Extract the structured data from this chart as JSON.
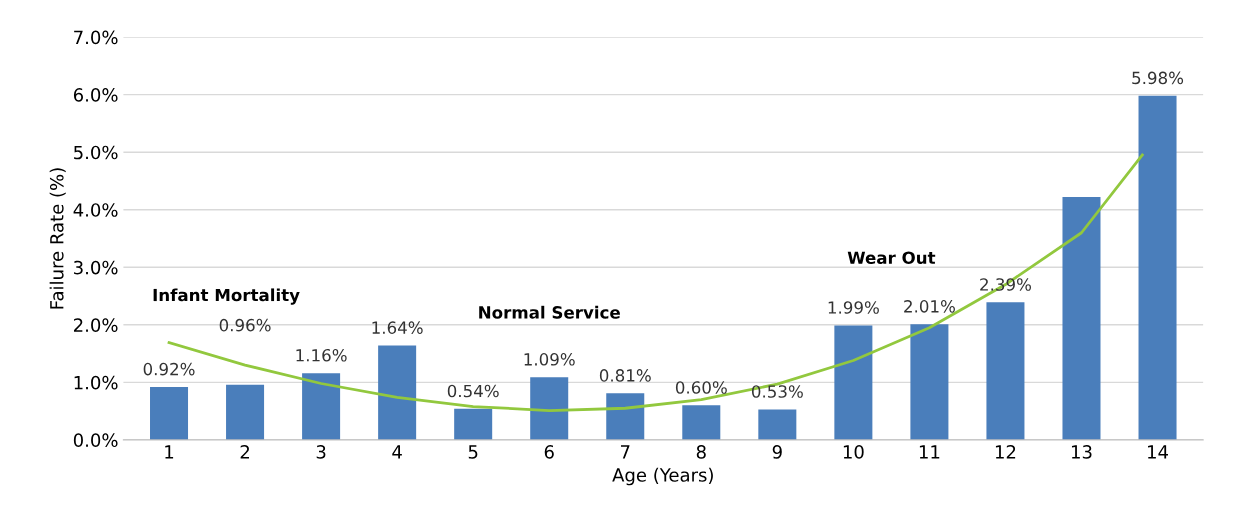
{
  "chart_data": {
    "type": "bar",
    "xlabel": "Age (Years)",
    "ylabel": "Failure Rate (%)",
    "x": [
      1,
      2,
      3,
      4,
      5,
      6,
      7,
      8,
      9,
      10,
      11,
      12,
      13,
      14
    ],
    "xlim": [
      0.4,
      14.6
    ],
    "xticks": [
      1,
      2,
      3,
      4,
      5,
      6,
      7,
      8,
      9,
      10,
      11,
      12,
      13,
      14
    ],
    "ylim": [
      0,
      7
    ],
    "yticks": [
      {
        "value": 0,
        "label": "0.0%"
      },
      {
        "value": 1,
        "label": "1.0%"
      },
      {
        "value": 2,
        "label": "2.0%"
      },
      {
        "value": 3,
        "label": "3.0%"
      },
      {
        "value": 4,
        "label": "4.0%"
      },
      {
        "value": 5,
        "label": "5.0%"
      },
      {
        "value": 6,
        "label": "6.0%"
      },
      {
        "value": 7,
        "label": "7.0%"
      }
    ],
    "grid": "y",
    "legend": false,
    "series": [
      {
        "color": "#4a7ebb",
        "values": [
          0.92,
          0.96,
          1.16,
          1.64,
          0.54,
          1.09,
          0.81,
          0.6,
          0.53,
          1.99,
          2.01,
          2.39,
          4.22,
          5.98
        ],
        "value_labels": [
          "0.92%",
          "0.96%",
          "1.16%",
          "1.64%",
          "0.54%",
          "1.09%",
          "0.81%",
          "0.60%",
          "0.53%",
          "1.99%",
          "2.01%",
          "2.39%",
          null,
          "5.98%"
        ]
      },
      {
        "type": "line",
        "color": "#92c83e",
        "marker": "none",
        "line_style": "solid",
        "x": [
          1,
          2,
          3,
          4,
          5,
          6,
          7,
          8,
          9,
          10,
          11,
          12,
          13,
          13.8
        ],
        "values": [
          1.69,
          1.3,
          0.98,
          0.74,
          0.58,
          0.51,
          0.55,
          0.7,
          0.97,
          1.38,
          1.95,
          2.7,
          3.6,
          4.95
        ]
      }
    ],
    "annotations": [
      "Infant Mortality",
      "Normal Service",
      "Wear Out"
    ]
  }
}
